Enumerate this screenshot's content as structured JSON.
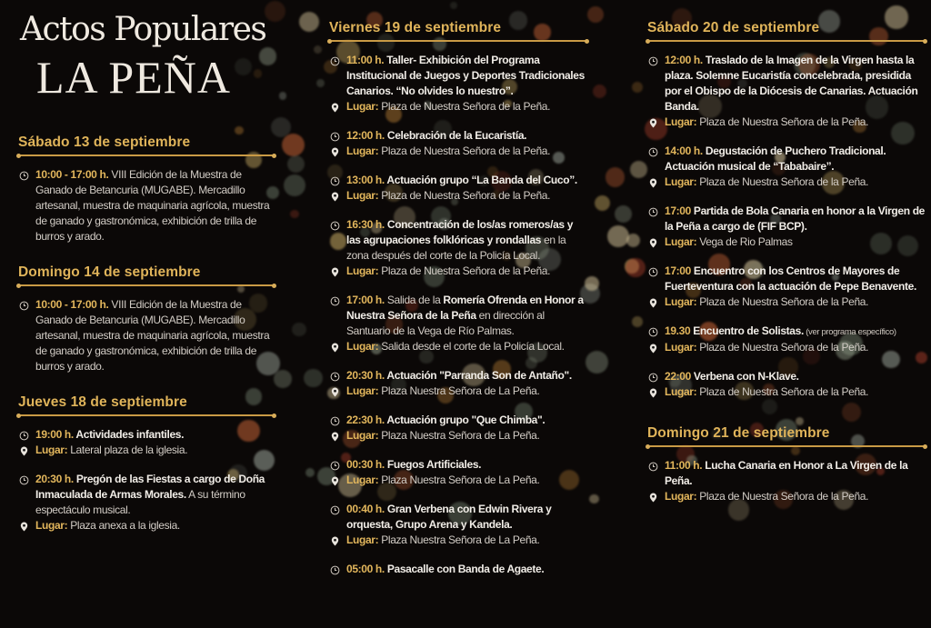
{
  "title": {
    "line1": "Actos Populares",
    "line2": "LA PEÑA"
  },
  "colors": {
    "accent": "#e0b45a",
    "background": "#0b0807",
    "text": "#e6e1dc"
  },
  "place_label": "Lugar:",
  "icons": {
    "time": "clock-icon",
    "place": "map-pin-icon"
  },
  "columns": [
    {
      "days": [
        {
          "heading": "Sábado 13 de septiembre",
          "events": [
            {
              "time": "10:00 - 17:00 h.",
              "desc": [
                {
                  "t": " VIII Edición de la Muestra de Ganado de Betancuria (MUGABE). Mercadillo artesanal, muestra de maquinaria agrícola, muestra de ganado y gastronómica, exhibición de trilla de burros y arado.",
                  "s": "n"
                }
              ]
            }
          ]
        },
        {
          "heading": "Domingo 14 de septiembre",
          "events": [
            {
              "time": "10:00 - 17:00 h.",
              "desc": [
                {
                  "t": " VIII Edición de la Muestra de Ganado de Betancuria (MUGABE). Mercadillo artesanal, muestra de maquinaria agrícola, muestra de ganado y gastronómica, exhibición de trilla de burros y arado.",
                  "s": "n"
                }
              ]
            }
          ]
        },
        {
          "heading": "Jueves 18 de septiembre",
          "events": [
            {
              "time": "19:00 h.",
              "desc": [
                {
                  "t": "  Actividades infantiles.",
                  "s": "b"
                }
              ],
              "place": "Lateral plaza de la iglesia."
            },
            {
              "time": "20:30 h.",
              "desc": [
                {
                  "t": " Pregón de las Fiestas a cargo de Doña Inmaculada de Armas Morales.",
                  "s": "b"
                },
                {
                  "t": " A su término espectáculo musical.",
                  "s": "n"
                }
              ],
              "place": "Plaza anexa a la iglesia."
            }
          ]
        }
      ]
    },
    {
      "days": [
        {
          "heading": "Viernes 19 de septiembre",
          "events": [
            {
              "time": "11:00 h.",
              "desc": [
                {
                  "t": "  Taller- Exhibición del Programa Institucional de Juegos y Deportes Tradicionales Canarios. “No olvides lo nuestro”.",
                  "s": "b"
                }
              ],
              "place": "Plaza de Nuestra Señora de la Peña."
            },
            {
              "time": "12:00 h.",
              "desc": [
                {
                  "t": " Celebración de la Eucaristía.",
                  "s": "b"
                }
              ],
              "place": "Plaza de Nuestra Señora de la Peña."
            },
            {
              "time": "13:00 h.",
              "desc": [
                {
                  "t": "  Actuación grupo  “La Banda del Cuco”.",
                  "s": "b"
                }
              ],
              "place": "Plaza de Nuestra Señora de la Peña."
            },
            {
              "time": "16:30 h.",
              "desc": [
                {
                  "t": " Concentración de los/as romeros/as y las agrupaciones folklóricas y rondallas",
                  "s": "b"
                },
                {
                  "t": " en la zona después del corte de la Policía Local.",
                  "s": "n"
                }
              ],
              "place": "Plaza de Nuestra Señora de la Peña."
            },
            {
              "time": "17:00 h.",
              "desc": [
                {
                  "t": " Salida de la ",
                  "s": "n"
                },
                {
                  "t": "Romería Ofrenda en Honor a Nuestra Señora de la Peña",
                  "s": "b"
                },
                {
                  "t": " en dirección al Santuario de la Vega de Río Palmas.",
                  "s": "n"
                }
              ],
              "place": "Salida desde el corte de la Policía Local."
            },
            {
              "time": "20:30 h.",
              "desc": [
                {
                  "t": "  Actuación \"Parranda Son de Antaño\".",
                  "s": "b"
                }
              ],
              "place": "Plaza Nuestra Señora de La Peña."
            },
            {
              "time": "22:30 h.",
              "desc": [
                {
                  "t": " Actuación grupo \"Que Chimba\".",
                  "s": "b"
                }
              ],
              "place": "Plaza Nuestra Señora de La Peña."
            },
            {
              "time": "00:30 h.",
              "desc": [
                {
                  "t": " Fuegos Artificiales.",
                  "s": "b"
                }
              ],
              "place": "Plaza Nuestra Señora de La Peña."
            },
            {
              "time": "00:40 h.",
              "desc": [
                {
                  "t": " Gran Verbena con Edwin Rivera y orquesta, Grupo Arena y Kandela.",
                  "s": "b"
                }
              ],
              "place": "Plaza Nuestra Señora de La Peña."
            },
            {
              "time": "05:00 h.",
              "desc": [
                {
                  "t": " Pasacalle con Banda de Agaete.",
                  "s": "b"
                }
              ]
            }
          ]
        }
      ]
    },
    {
      "days": [
        {
          "heading": "Sábado 20 de septiembre",
          "events": [
            {
              "time": "12:00 h.",
              "desc": [
                {
                  "t": " Traslado de la Imagen de la Virgen hasta la plaza. Solemne Eucaristía concelebrada, presidida por el Obispo de la Diócesis de Canarias. Actuación Banda.",
                  "s": "b"
                }
              ],
              "place": "Plaza de Nuestra Señora de la Peña."
            },
            {
              "time": "14:00 h.",
              "desc": [
                {
                  "t": " Degustación de Puchero Tradicional. Actuación musical de “Tababaire”.",
                  "s": "b"
                }
              ],
              "place": "Plaza de Nuestra Señora de la Peña."
            },
            {
              "time": "17:00",
              "desc": [
                {
                  "t": "  Partida de Bola Canaria en honor a la Virgen de la Peña a cargo de (FIF BCP).",
                  "s": "b"
                }
              ],
              "place": "Vega de Rio Palmas"
            },
            {
              "time": "17:00",
              "desc": [
                {
                  "t": "   Encuentro con los Centros de Mayores de Fuerteventura con la actuación de Pepe Benavente.",
                  "s": "b"
                }
              ],
              "place": "Plaza de Nuestra Señora de la Peña."
            },
            {
              "time": "19.30",
              "desc": [
                {
                  "t": " Encuentro de Solistas.",
                  "s": "b"
                },
                {
                  "t": " (ver programa específico)",
                  "s": "small"
                }
              ],
              "place": "Plaza de Nuestra Señora de la Peña."
            },
            {
              "time": "22:00",
              "desc": [
                {
                  "t": " Verbena con N-Klave.",
                  "s": "b"
                }
              ],
              "place": "Plaza de Nuestra Señora de la Peña."
            }
          ]
        },
        {
          "heading": "Domingo 21 de septiembre",
          "events": [
            {
              "time": "11:00 h.",
              "desc": [
                {
                  "t": "  Lucha Canaria en Honor a La Virgen de la Peña.",
                  "s": "b"
                }
              ],
              "place": "Plaza de Nuestra Señora de la Peña."
            }
          ]
        }
      ]
    }
  ]
}
